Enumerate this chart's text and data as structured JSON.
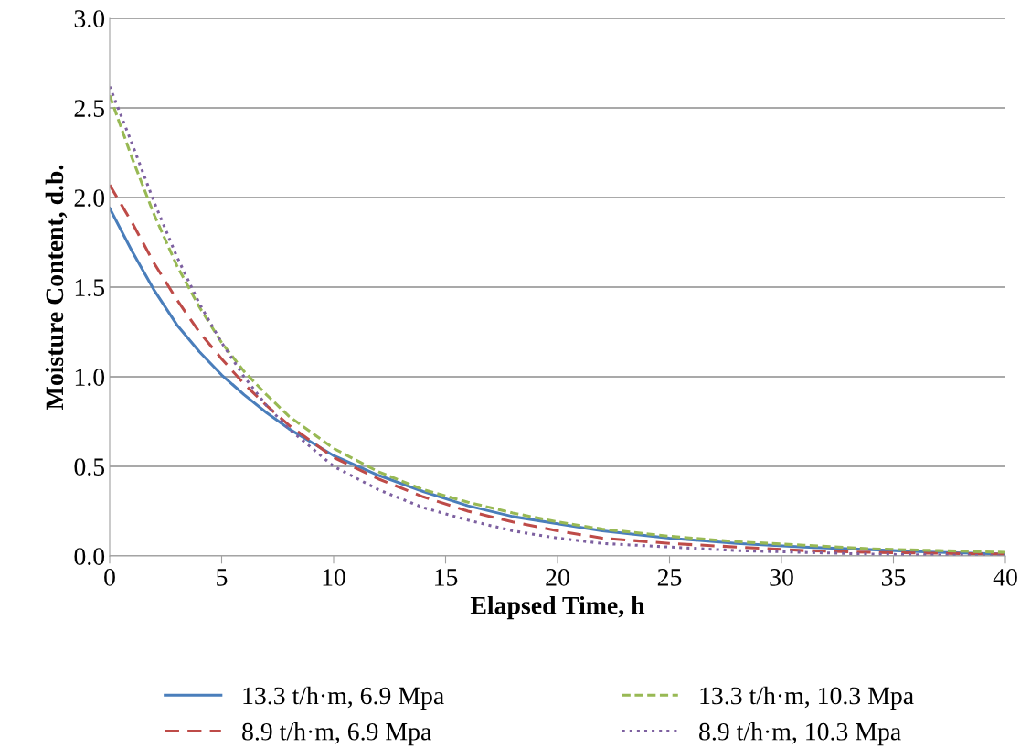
{
  "chart_data": {
    "type": "line",
    "xlabel": "Elapsed Time, h",
    "ylabel": "Moisture Content, d.b.",
    "xlim": [
      0,
      40
    ],
    "xticks": [
      0,
      5,
      10,
      15,
      20,
      25,
      30,
      35,
      40
    ],
    "ylim": [
      0,
      3.0
    ],
    "yticks": [
      {
        "value": 0,
        "label": "0.0"
      },
      {
        "value": 0.5,
        "label": "0.5"
      },
      {
        "value": 1.0,
        "label": "1.0"
      },
      {
        "value": 1.5,
        "label": "1.5"
      },
      {
        "value": 2.0,
        "label": "2.0"
      },
      {
        "value": 2.5,
        "label": "2.5"
      },
      {
        "value": 3.0,
        "label": "3.0"
      }
    ],
    "grid": "y",
    "legend": "bottom",
    "marker": "none",
    "x": [
      0,
      1,
      2,
      3,
      4,
      5,
      6,
      7,
      8,
      10,
      12,
      14,
      16,
      18,
      20,
      22,
      25,
      28,
      31,
      34,
      37,
      40
    ],
    "series": [
      {
        "name": "13.3 t/h·m, 6.9 Mpa",
        "color": "#4a7ebb",
        "line_style": "solid",
        "values": [
          1.94,
          1.7,
          1.48,
          1.29,
          1.14,
          1.01,
          0.9,
          0.8,
          0.71,
          0.56,
          0.45,
          0.36,
          0.28,
          0.22,
          0.18,
          0.14,
          0.1,
          0.07,
          0.05,
          0.035,
          0.02,
          0.01
        ]
      },
      {
        "name": "8.9 t/h·m, 6.9 Mpa",
        "color": "#be4b48",
        "line_style": "dashed",
        "values": [
          2.07,
          1.86,
          1.63,
          1.43,
          1.25,
          1.1,
          0.96,
          0.84,
          0.73,
          0.55,
          0.43,
          0.33,
          0.25,
          0.19,
          0.14,
          0.1,
          0.07,
          0.05,
          0.03,
          0.02,
          0.015,
          0.01
        ]
      },
      {
        "name": "13.3 t/h·m, 10.3 Mpa",
        "color": "#98b954",
        "line_style": "dashed",
        "values": [
          2.57,
          2.22,
          1.9,
          1.62,
          1.39,
          1.19,
          1.03,
          0.9,
          0.78,
          0.6,
          0.47,
          0.37,
          0.3,
          0.24,
          0.19,
          0.15,
          0.11,
          0.08,
          0.06,
          0.04,
          0.03,
          0.02
        ]
      },
      {
        "name": "8.9 t/h·m, 10.3 Mpa",
        "color": "#7d60a0",
        "line_style": "dotted",
        "values": [
          2.62,
          2.3,
          1.97,
          1.67,
          1.41,
          1.19,
          1.0,
          0.84,
          0.71,
          0.5,
          0.37,
          0.27,
          0.2,
          0.14,
          0.1,
          0.07,
          0.05,
          0.03,
          0.02,
          0.01,
          0.005,
          0.0
        ]
      }
    ]
  }
}
